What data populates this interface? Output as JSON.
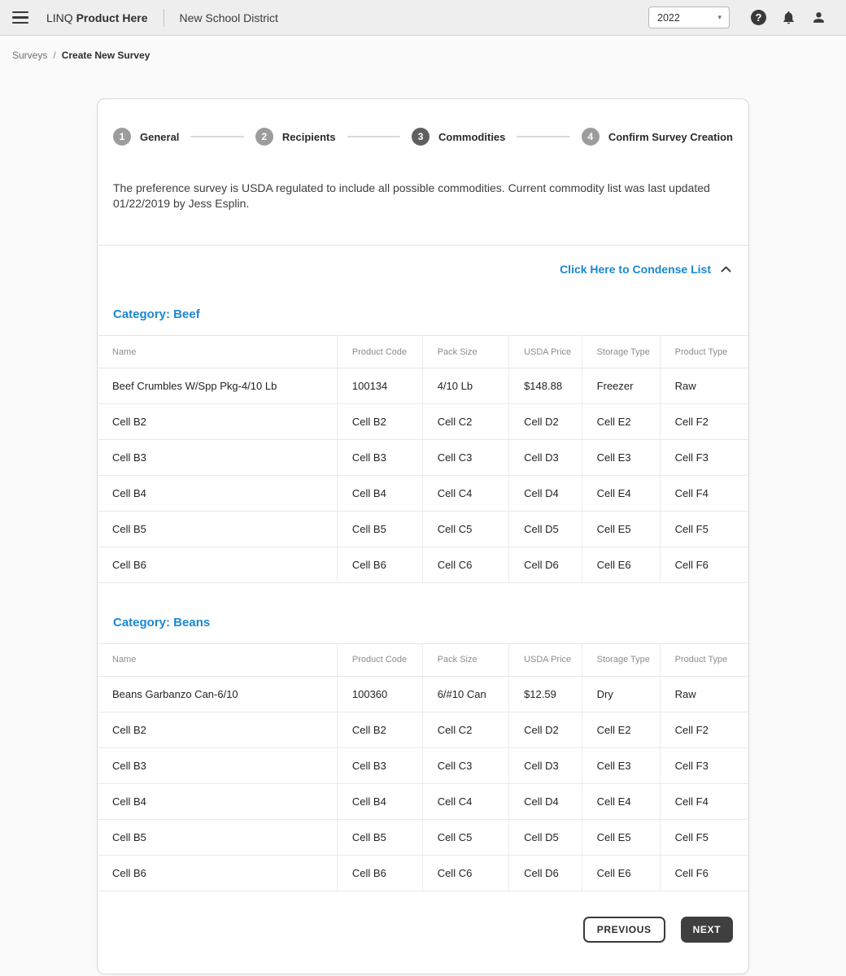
{
  "header": {
    "brand_prefix": "LINQ",
    "brand_bold": "Product Here",
    "district": "New School District",
    "year": "2022"
  },
  "icons": {
    "menu": "hamburger",
    "help": "?",
    "notifications": "bell",
    "account": "person",
    "year_caret": "▾",
    "collapse": "chevron-up"
  },
  "breadcrumb": {
    "parent": "Surveys",
    "separator": "/",
    "current": "Create New Survey"
  },
  "stepper": {
    "steps": [
      {
        "number": "1",
        "label": "General",
        "active": false
      },
      {
        "number": "2",
        "label": "Recipients",
        "active": false
      },
      {
        "number": "3",
        "label": "Commodities",
        "active": true
      },
      {
        "number": "4",
        "label": "Confirm Survey Creation",
        "active": false
      }
    ]
  },
  "intro_text": "The preference survey is USDA regulated to include all possible commodities. Current commodity list was last updated 01/22/2019 by Jess Esplin.",
  "condense_link": "Click Here to Condense List",
  "table": {
    "columns": [
      "Name",
      "Product Code",
      "Pack Size",
      "USDA Price",
      "Storage Type",
      "Product Type"
    ]
  },
  "categories": [
    {
      "title": "Category: Beef",
      "rows": [
        [
          "Beef Crumbles W/Spp Pkg-4/10 Lb",
          "100134",
          "4/10 Lb",
          "$148.88",
          "Freezer",
          "Raw"
        ],
        [
          "Cell B2",
          "Cell B2",
          "Cell C2",
          "Cell D2",
          "Cell E2",
          "Cell F2"
        ],
        [
          "Cell B3",
          "Cell B3",
          "Cell C3",
          "Cell D3",
          "Cell E3",
          "Cell F3"
        ],
        [
          "Cell B4",
          "Cell B4",
          "Cell C4",
          "Cell D4",
          "Cell E4",
          "Cell F4"
        ],
        [
          "Cell B5",
          "Cell B5",
          "Cell C5",
          "Cell D5",
          "Cell E5",
          "Cell F5"
        ],
        [
          "Cell B6",
          "Cell B6",
          "Cell C6",
          "Cell D6",
          "Cell E6",
          "Cell F6"
        ]
      ]
    },
    {
      "title": "Category: Beans",
      "rows": [
        [
          "Beans Garbanzo Can-6/10",
          "100360",
          "6/#10 Can",
          "$12.59",
          "Dry",
          "Raw"
        ],
        [
          "Cell B2",
          "Cell B2",
          "Cell C2",
          "Cell D2",
          "Cell E2",
          "Cell F2"
        ],
        [
          "Cell B3",
          "Cell B3",
          "Cell C3",
          "Cell D3",
          "Cell E3",
          "Cell F3"
        ],
        [
          "Cell B4",
          "Cell B4",
          "Cell C4",
          "Cell D4",
          "Cell E4",
          "Cell F4"
        ],
        [
          "Cell B5",
          "Cell B5",
          "Cell C5",
          "Cell D5",
          "Cell E5",
          "Cell F5"
        ],
        [
          "Cell B6",
          "Cell B6",
          "Cell C6",
          "Cell D6",
          "Cell E6",
          "Cell F6"
        ]
      ]
    }
  ],
  "buttons": {
    "previous": "PREVIOUS",
    "next": "NEXT"
  },
  "colors": {
    "accent_blue": "#1a87d2",
    "active_step": "#5f5f5f",
    "inactive_step": "#9c9c9c",
    "dark_button": "#3f3f3f",
    "topbar_bg": "#eeeeee"
  }
}
